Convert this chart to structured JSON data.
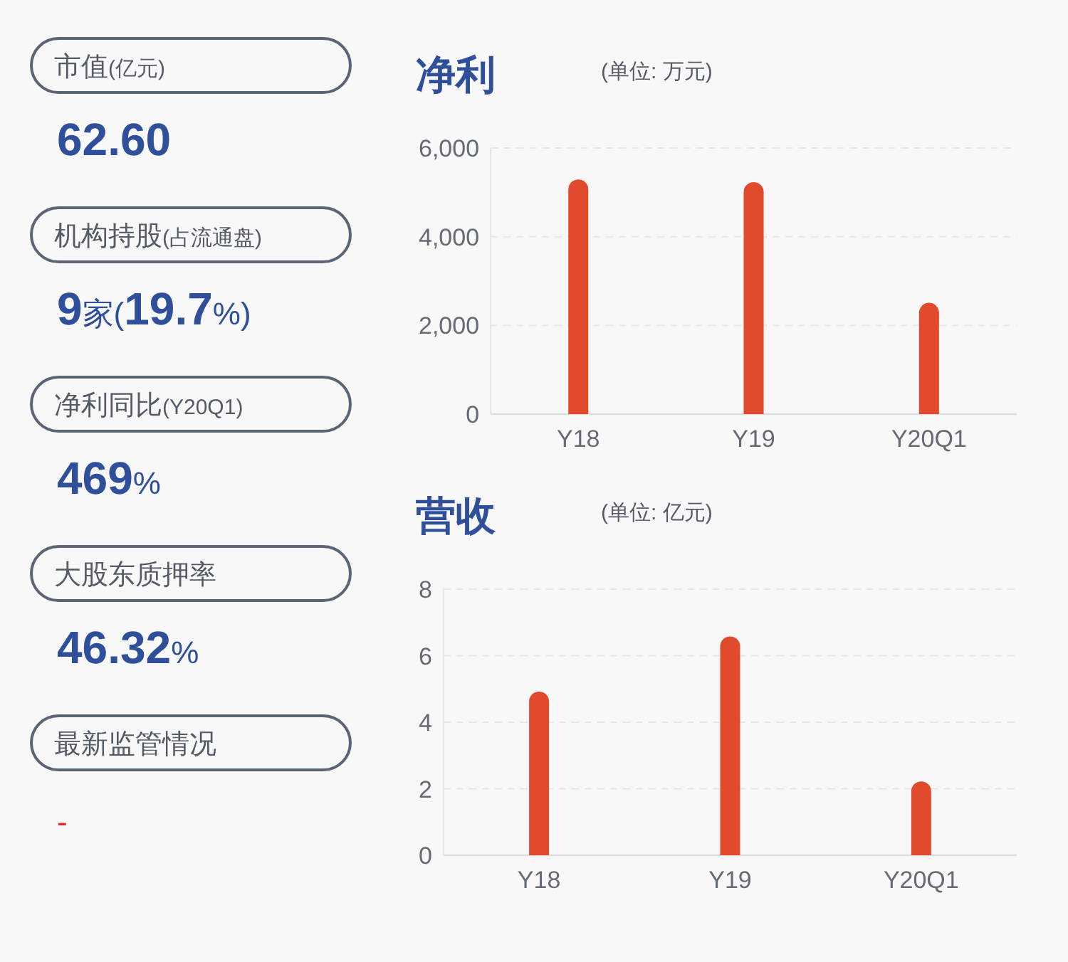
{
  "chart_data": [
    {
      "type": "other",
      "annotations": [
        "市值(亿元)",
        "62.60",
        "机构持股(占流通盘)",
        "9家(19.7%)",
        "净利同比(Y20Q1)",
        "469%",
        "大股东质押率",
        "46.32%",
        "最新监管情况",
        "-"
      ],
      "colors": [
        "#2f4f9a",
        "#2f4f9a",
        "#2f4f9a",
        "#2f4f9a",
        "#e02b2b"
      ]
    },
    {
      "type": "bar",
      "title": "净利",
      "subtitle": "(单位: 万元)",
      "categories": [
        "Y18",
        "Y19",
        "Y20Q1"
      ],
      "values": [
        5290,
        5230,
        2510
      ],
      "color": "#e14a2b",
      "ylim": [
        0,
        6000
      ],
      "yticks": [
        0,
        {
          "value": 2000,
          "label": "2,000"
        },
        {
          "value": 4000,
          "label": "4,000"
        },
        {
          "value": 6000,
          "label": "6,000"
        }
      ],
      "grid": "y"
    },
    {
      "type": "bar",
      "title": "营收",
      "subtitle": "(单位: 亿元)",
      "categories": [
        "Y18",
        "Y19",
        "Y20Q1"
      ],
      "values": [
        4.92,
        6.58,
        2.22
      ],
      "color": "#e14a2b",
      "ylim": [
        0,
        8
      ],
      "yticks": [
        0,
        2,
        4,
        6,
        8
      ],
      "grid": "y"
    }
  ]
}
